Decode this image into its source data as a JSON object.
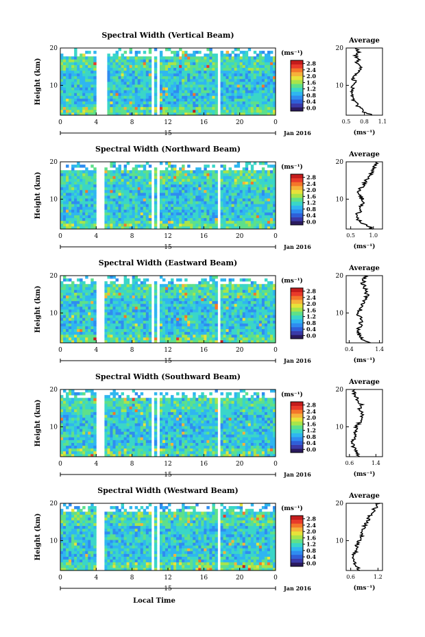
{
  "figure": {
    "xlabel": "Local Time",
    "date_label": "Jan 2016",
    "day_label": "15",
    "unit_label": "(ms⁻¹)",
    "ylabel": "Height (km)",
    "avg_title": "Average",
    "avg_xlabel": "(ms⁻¹)"
  },
  "colorbar": {
    "ticks": [
      "0.0",
      "0.4",
      "0.8",
      "1.2",
      "1.6",
      "2.0",
      "2.4",
      "2.8"
    ],
    "colors": [
      "#2a1a5e",
      "#3a3aa8",
      "#2f5fd8",
      "#2f8cf0",
      "#2fb6f0",
      "#3ad6c8",
      "#5ee08a",
      "#a8e44a",
      "#e8e23a",
      "#f6b23a",
      "#f4762a",
      "#e83a2a",
      "#c41c1c"
    ]
  },
  "chart_data": [
    {
      "type": "heatmap",
      "title": "Spectral Width (Vertical Beam)",
      "x": {
        "ticks": [
          "0",
          "4",
          "8",
          "12",
          "16",
          "20",
          "0"
        ],
        "range": [
          0,
          24
        ]
      },
      "y": {
        "ticks": [
          "20",
          "10"
        ],
        "range": [
          2,
          20
        ]
      },
      "gaps": [
        [
          4.0,
          5.2
        ],
        [
          10.1,
          10.4
        ],
        [
          10.8,
          11.2
        ],
        [
          17.5,
          17.7
        ]
      ],
      "average": {
        "x_ticks": [
          "0.5",
          "0.8",
          "1.1"
        ],
        "xlim": [
          0.5,
          1.1
        ],
        "profile": [
          [
            2,
            0.95
          ],
          [
            3,
            0.78
          ],
          [
            4,
            0.72
          ],
          [
            5,
            0.68
          ],
          [
            6,
            0.63
          ],
          [
            7,
            0.6
          ],
          [
            8,
            0.58
          ],
          [
            9,
            0.62
          ],
          [
            10,
            0.6
          ],
          [
            11,
            0.64
          ],
          [
            12,
            0.62
          ],
          [
            13,
            0.66
          ],
          [
            14,
            0.7
          ],
          [
            15,
            0.74
          ],
          [
            16,
            0.68
          ],
          [
            17,
            0.72
          ],
          [
            18,
            0.66
          ],
          [
            19,
            0.7
          ],
          [
            20,
            0.68
          ]
        ]
      }
    },
    {
      "type": "heatmap",
      "title": "Spectral Width (Northward Beam)",
      "x": {
        "ticks": [
          "0",
          "4",
          "8",
          "12",
          "16",
          "20",
          "0"
        ],
        "range": [
          0,
          24
        ]
      },
      "y": {
        "ticks": [
          "20",
          "10"
        ],
        "range": [
          2,
          20
        ]
      },
      "gaps": [
        [
          4.0,
          5.0
        ],
        [
          10.1,
          10.4
        ],
        [
          10.9,
          11.1
        ],
        [
          17.5,
          17.7
        ]
      ],
      "average": {
        "x_ticks": [
          "0.5",
          "1.0"
        ],
        "xlim": [
          0.4,
          1.2
        ],
        "profile": [
          [
            2,
            1.0
          ],
          [
            3,
            0.85
          ],
          [
            4,
            0.7
          ],
          [
            5,
            0.62
          ],
          [
            6,
            0.64
          ],
          [
            7,
            0.72
          ],
          [
            8,
            0.68
          ],
          [
            9,
            0.8
          ],
          [
            10,
            0.75
          ],
          [
            11,
            0.7
          ],
          [
            12,
            0.65
          ],
          [
            13,
            0.72
          ],
          [
            14,
            0.8
          ],
          [
            15,
            0.85
          ],
          [
            16,
            0.9
          ],
          [
            17,
            0.95
          ],
          [
            18,
            1.0
          ],
          [
            19,
            1.05
          ],
          [
            20,
            1.1
          ]
        ]
      }
    },
    {
      "type": "heatmap",
      "title": "Spectral Width (Eastward Beam)",
      "x": {
        "ticks": [
          "0",
          "4",
          "8",
          "12",
          "16",
          "20",
          "0"
        ],
        "range": [
          0,
          24
        ]
      },
      "y": {
        "ticks": [
          "20",
          "10"
        ],
        "range": [
          2,
          20
        ]
      },
      "gaps": [
        [
          4.0,
          5.0
        ],
        [
          10.1,
          10.4
        ],
        [
          10.9,
          11.1
        ],
        [
          17.5,
          17.7
        ]
      ],
      "average": {
        "x_ticks": [
          "0.4",
          "1.4"
        ],
        "xlim": [
          0.3,
          1.5
        ],
        "profile": [
          [
            2,
            1.1
          ],
          [
            3,
            0.85
          ],
          [
            4,
            0.75
          ],
          [
            5,
            0.7
          ],
          [
            6,
            0.72
          ],
          [
            7,
            0.8
          ],
          [
            8,
            0.78
          ],
          [
            9,
            0.75
          ],
          [
            10,
            0.7
          ],
          [
            11,
            0.78
          ],
          [
            12,
            0.85
          ],
          [
            13,
            0.9
          ],
          [
            14,
            0.95
          ],
          [
            15,
            1.0
          ],
          [
            16,
            0.9
          ],
          [
            17,
            0.95
          ],
          [
            18,
            0.85
          ],
          [
            19,
            0.9
          ],
          [
            20,
            0.95
          ]
        ]
      }
    },
    {
      "type": "heatmap",
      "title": "Spectral Width (Southward Beam)",
      "x": {
        "ticks": [
          "0",
          "4",
          "8",
          "12",
          "16",
          "20",
          "0"
        ],
        "range": [
          0,
          24
        ]
      },
      "y": {
        "ticks": [
          "20",
          "10"
        ],
        "range": [
          2,
          20
        ]
      },
      "gaps": [
        [
          4.0,
          5.0
        ],
        [
          10.1,
          10.4
        ],
        [
          10.9,
          11.1
        ],
        [
          17.5,
          17.7
        ]
      ],
      "average": {
        "x_ticks": [
          "0.6",
          "1.4"
        ],
        "xlim": [
          0.5,
          1.6
        ],
        "profile": [
          [
            2,
            0.9
          ],
          [
            3,
            0.8
          ],
          [
            4,
            0.75
          ],
          [
            5,
            0.72
          ],
          [
            6,
            0.7
          ],
          [
            7,
            0.75
          ],
          [
            8,
            0.8
          ],
          [
            9,
            0.78
          ],
          [
            10,
            0.82
          ],
          [
            11,
            0.9
          ],
          [
            12,
            0.95
          ],
          [
            13,
            1.0
          ],
          [
            14,
            0.95
          ],
          [
            15,
            0.9
          ],
          [
            16,
            0.95
          ],
          [
            17,
            0.85
          ],
          [
            18,
            0.8
          ],
          [
            19,
            0.75
          ],
          [
            20,
            0.7
          ]
        ]
      }
    },
    {
      "type": "heatmap",
      "title": "Spectral Width (Westward Beam)",
      "x": {
        "ticks": [
          "0",
          "4",
          "8",
          "12",
          "16",
          "20",
          "0"
        ],
        "range": [
          0,
          24
        ]
      },
      "y": {
        "ticks": [
          "20",
          "10"
        ],
        "range": [
          2,
          20
        ]
      },
      "gaps": [
        [
          4.0,
          5.0
        ],
        [
          10.1,
          10.4
        ],
        [
          10.9,
          11.1
        ],
        [
          17.5,
          17.7
        ]
      ],
      "average": {
        "x_ticks": [
          "0.6",
          "1.2"
        ],
        "xlim": [
          0.5,
          1.3
        ],
        "profile": [
          [
            2,
            0.8
          ],
          [
            3,
            0.72
          ],
          [
            4,
            0.68
          ],
          [
            5,
            0.65
          ],
          [
            6,
            0.66
          ],
          [
            7,
            0.7
          ],
          [
            8,
            0.72
          ],
          [
            9,
            0.74
          ],
          [
            10,
            0.78
          ],
          [
            11,
            0.82
          ],
          [
            12,
            0.85
          ],
          [
            13,
            0.88
          ],
          [
            14,
            0.9
          ],
          [
            15,
            0.95
          ],
          [
            16,
            1.0
          ],
          [
            17,
            1.05
          ],
          [
            18,
            1.1
          ],
          [
            19,
            1.15
          ],
          [
            20,
            1.2
          ]
        ]
      }
    }
  ]
}
